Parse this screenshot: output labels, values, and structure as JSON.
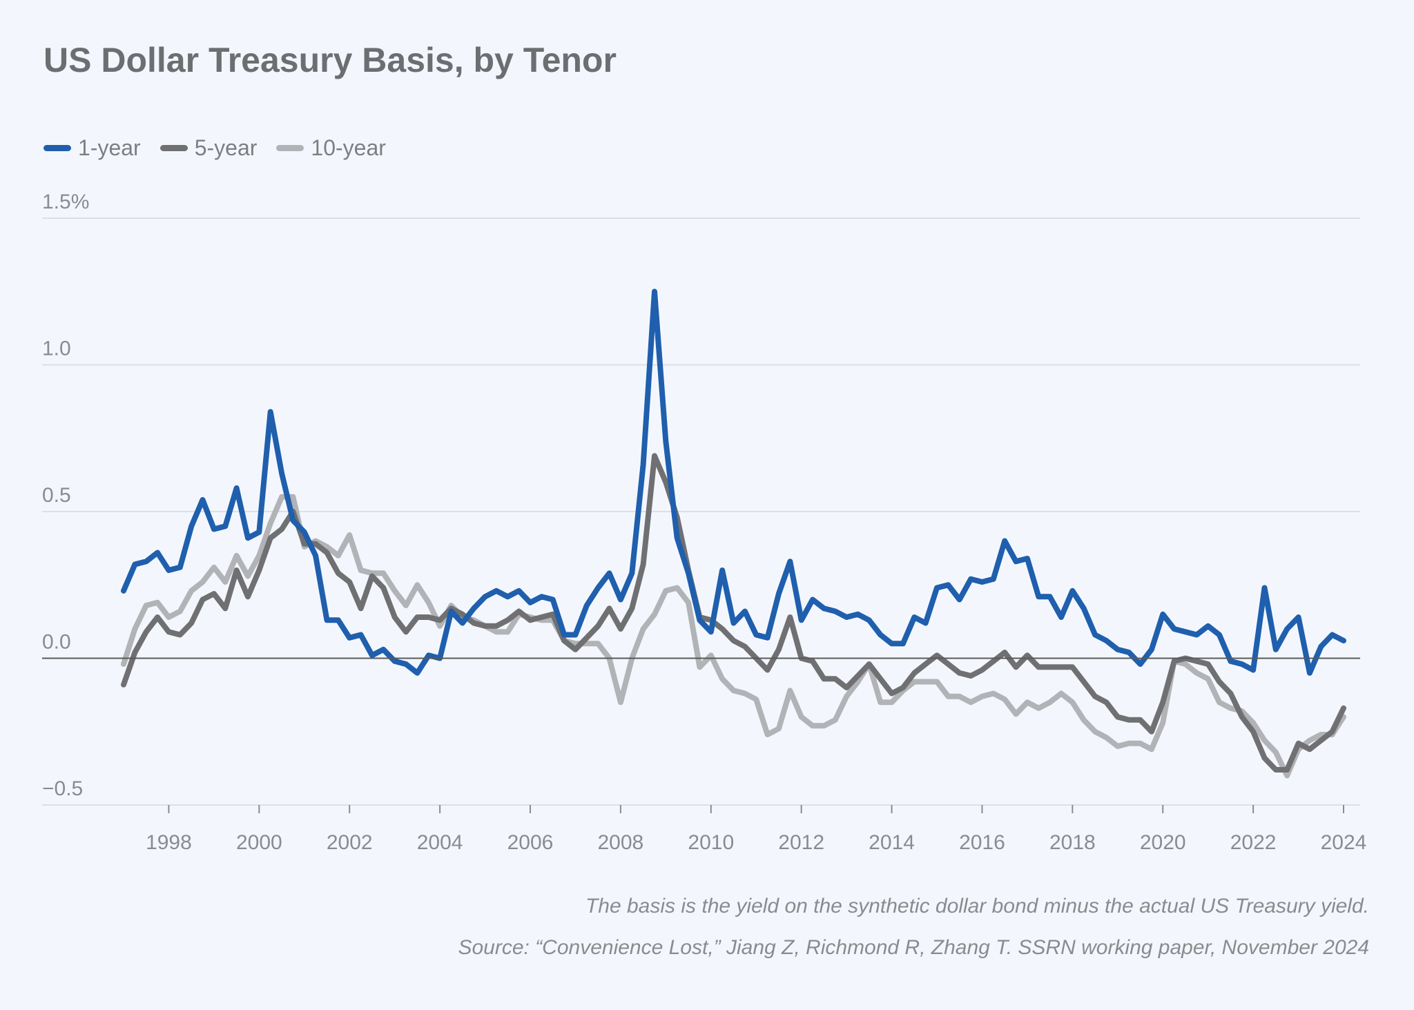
{
  "chart_data": {
    "type": "line",
    "title": "US Dollar Treasury Basis, by Tenor",
    "xlabel": "",
    "ylabel": "",
    "x_start": 1997,
    "x_step": 0.25,
    "xlim": [
      1997,
      2024
    ],
    "ylim": [
      -0.5,
      1.5
    ],
    "grid": true,
    "legend_position": "top-left",
    "x_ticks": [
      "1998",
      "2000",
      "2002",
      "2004",
      "2006",
      "2008",
      "2010",
      "2012",
      "2014",
      "2016",
      "2018",
      "2020",
      "2022",
      "2024"
    ],
    "y_ticks": [
      {
        "value": 1.5,
        "label": "1.5%"
      },
      {
        "value": 1.0,
        "label": "1.0"
      },
      {
        "value": 0.5,
        "label": "0.5"
      },
      {
        "value": 0.0,
        "label": "0.0"
      },
      {
        "value": -0.5,
        "label": "−0.5"
      }
    ],
    "series": [
      {
        "name": "1-year",
        "color": "#1f5fad",
        "values": [
          0.23,
          0.32,
          0.33,
          0.36,
          0.3,
          0.31,
          0.45,
          0.54,
          0.44,
          0.45,
          0.58,
          0.41,
          0.43,
          0.84,
          0.63,
          0.47,
          0.43,
          0.35,
          0.13,
          0.13,
          0.07,
          0.08,
          0.01,
          0.03,
          -0.01,
          -0.02,
          -0.05,
          0.01,
          0.0,
          0.16,
          0.12,
          0.17,
          0.21,
          0.23,
          0.21,
          0.23,
          0.19,
          0.21,
          0.2,
          0.08,
          0.08,
          0.18,
          0.24,
          0.29,
          0.2,
          0.29,
          0.66,
          1.25,
          0.74,
          0.41,
          0.29,
          0.13,
          0.09,
          0.3,
          0.12,
          0.16,
          0.08,
          0.07,
          0.22,
          0.33,
          0.13,
          0.2,
          0.17,
          0.16,
          0.14,
          0.15,
          0.13,
          0.08,
          0.05,
          0.05,
          0.14,
          0.12,
          0.24,
          0.25,
          0.2,
          0.27,
          0.26,
          0.27,
          0.4,
          0.33,
          0.34,
          0.21,
          0.21,
          0.14,
          0.23,
          0.17,
          0.08,
          0.06,
          0.03,
          0.02,
          -0.02,
          0.03,
          0.15,
          0.1,
          0.09,
          0.08,
          0.11,
          0.08,
          -0.01,
          -0.02,
          -0.04,
          0.24,
          0.03,
          0.1,
          0.14,
          -0.05,
          0.04,
          0.08,
          0.06
        ]
      },
      {
        "name": "5-year",
        "color": "#707073",
        "values": [
          -0.09,
          0.02,
          0.09,
          0.14,
          0.09,
          0.08,
          0.12,
          0.2,
          0.22,
          0.17,
          0.3,
          0.21,
          0.3,
          0.41,
          0.44,
          0.5,
          0.39,
          0.39,
          0.36,
          0.29,
          0.26,
          0.17,
          0.28,
          0.24,
          0.14,
          0.09,
          0.14,
          0.14,
          0.13,
          0.17,
          0.15,
          0.12,
          0.11,
          0.11,
          0.13,
          0.16,
          0.13,
          0.14,
          0.15,
          0.06,
          0.03,
          0.07,
          0.11,
          0.17,
          0.1,
          0.17,
          0.32,
          0.69,
          0.6,
          0.48,
          0.3,
          0.14,
          0.13,
          0.1,
          0.06,
          0.04,
          0.0,
          -0.04,
          0.03,
          0.14,
          0.0,
          -0.01,
          -0.07,
          -0.07,
          -0.1,
          -0.06,
          -0.02,
          -0.07,
          -0.12,
          -0.1,
          -0.05,
          -0.02,
          0.01,
          -0.02,
          -0.05,
          -0.06,
          -0.04,
          -0.01,
          0.02,
          -0.03,
          0.01,
          -0.03,
          -0.03,
          -0.03,
          -0.03,
          -0.08,
          -0.13,
          -0.15,
          -0.2,
          -0.21,
          -0.21,
          -0.25,
          -0.15,
          -0.01,
          0.0,
          -0.01,
          -0.02,
          -0.08,
          -0.12,
          -0.2,
          -0.25,
          -0.34,
          -0.38,
          -0.38,
          -0.29,
          -0.31,
          -0.28,
          -0.25,
          -0.17
        ]
      },
      {
        "name": "10-year",
        "color": "#b1b3b6",
        "values": [
          -0.02,
          0.1,
          0.18,
          0.19,
          0.14,
          0.16,
          0.23,
          0.26,
          0.31,
          0.26,
          0.35,
          0.28,
          0.35,
          0.46,
          0.55,
          0.55,
          0.38,
          0.4,
          0.38,
          0.35,
          0.42,
          0.3,
          0.29,
          0.29,
          0.23,
          0.18,
          0.25,
          0.19,
          0.11,
          0.18,
          0.14,
          0.13,
          0.11,
          0.09,
          0.09,
          0.15,
          0.14,
          0.13,
          0.13,
          0.06,
          0.05,
          0.05,
          0.05,
          0.0,
          -0.15,
          0.0,
          0.1,
          0.15,
          0.23,
          0.24,
          0.19,
          -0.03,
          0.01,
          -0.07,
          -0.11,
          -0.12,
          -0.14,
          -0.26,
          -0.24,
          -0.11,
          -0.2,
          -0.23,
          -0.23,
          -0.21,
          -0.13,
          -0.08,
          -0.02,
          -0.15,
          -0.15,
          -0.11,
          -0.08,
          -0.08,
          -0.08,
          -0.13,
          -0.13,
          -0.15,
          -0.13,
          -0.12,
          -0.14,
          -0.19,
          -0.15,
          -0.17,
          -0.15,
          -0.12,
          -0.15,
          -0.21,
          -0.25,
          -0.27,
          -0.3,
          -0.29,
          -0.29,
          -0.31,
          -0.22,
          -0.01,
          -0.02,
          -0.05,
          -0.07,
          -0.15,
          -0.17,
          -0.18,
          -0.22,
          -0.28,
          -0.32,
          -0.4,
          -0.31,
          -0.28,
          -0.26,
          -0.26,
          -0.2
        ]
      }
    ],
    "annotations": {
      "note": "The basis is the yield on the synthetic dollar bond minus the actual US Treasury yield.",
      "source": "Source: “Convenience Lost,” Jiang Z, Richmond R, Zhang T. SSRN working paper, November 2024"
    }
  }
}
